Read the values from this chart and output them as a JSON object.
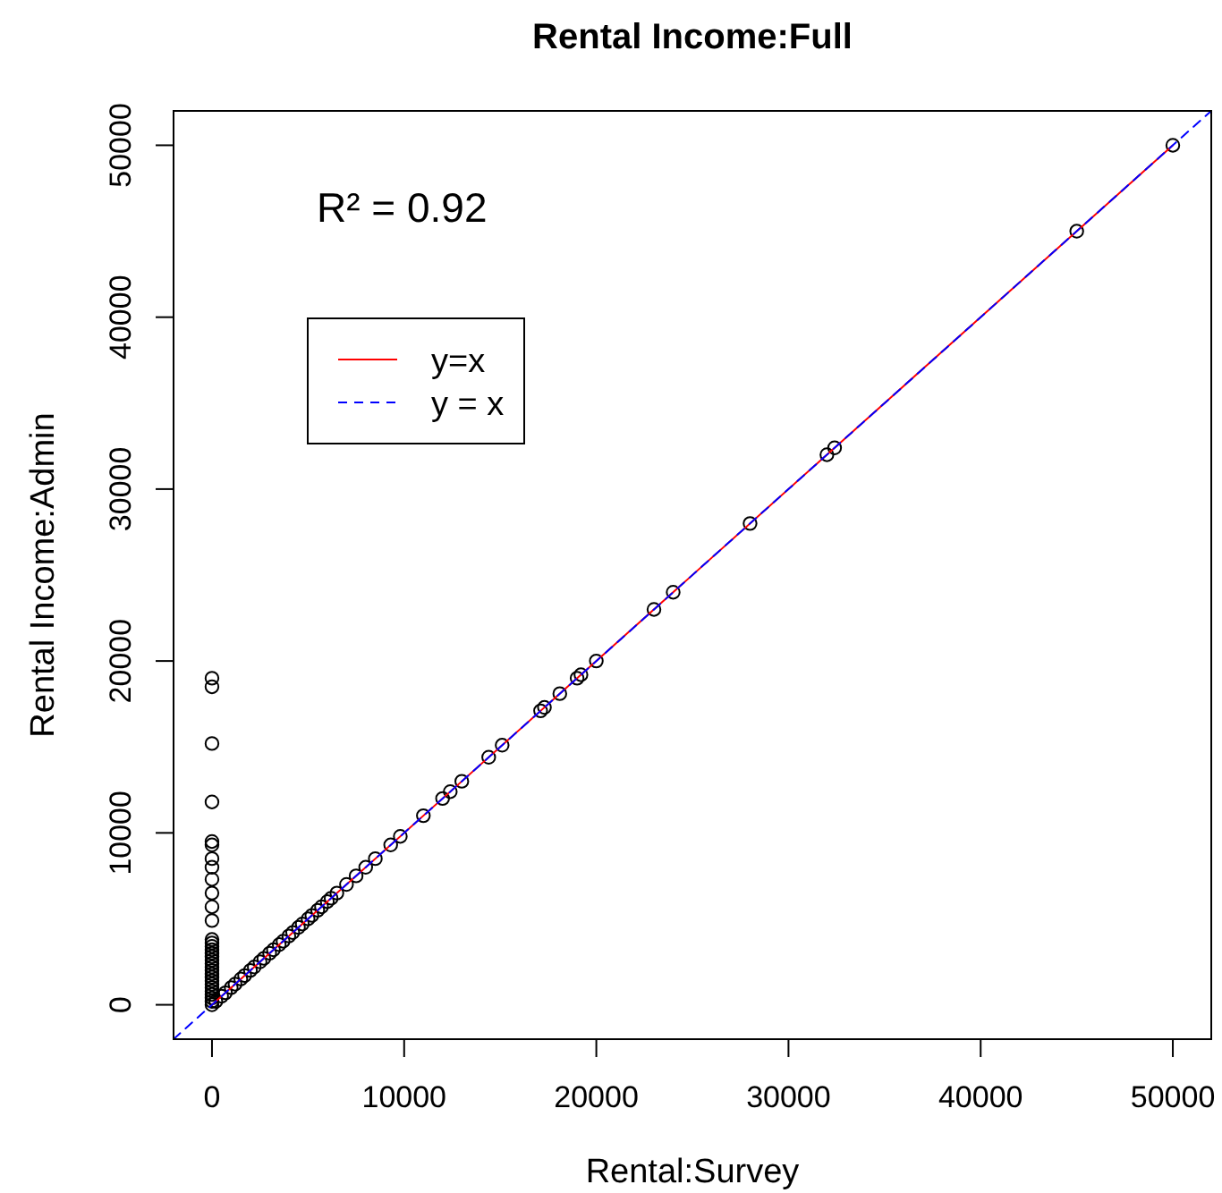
{
  "chart_data": {
    "type": "scatter",
    "title": "Rental Income:Full",
    "xlabel": "Rental:Survey",
    "ylabel": "Rental Income:Admin",
    "annotations": [
      "R² = 0.92"
    ],
    "xlim": [
      -2000,
      52000
    ],
    "ylim": [
      -2000,
      52000
    ],
    "xticks": [
      0,
      10000,
      20000,
      30000,
      40000,
      50000
    ],
    "yticks": [
      0,
      10000,
      20000,
      30000,
      40000,
      50000
    ],
    "grid": false,
    "legend": "top left",
    "marker": "circle",
    "series": [
      {
        "color": "#000000",
        "x": [
          0,
          0,
          0,
          0,
          0,
          0,
          0,
          0,
          0,
          0,
          0,
          0,
          0,
          0,
          0,
          0,
          0,
          0,
          0,
          0,
          0,
          0,
          0,
          0,
          0,
          0,
          0,
          0,
          0,
          0,
          0,
          0,
          200,
          500,
          700,
          1000,
          1200,
          1500,
          1700,
          2000,
          2200,
          2500,
          2700,
          3000,
          3200,
          3500,
          3700,
          4000,
          4200,
          4500,
          4700,
          5000,
          5200,
          5500,
          5700,
          6000,
          6200,
          6500,
          7000,
          7500,
          8000,
          8500,
          9300,
          9800,
          11000,
          12000,
          12400,
          13000,
          14400,
          15100,
          17100,
          17300,
          18100,
          19000,
          19200,
          20000,
          23000,
          24000,
          28000,
          32000,
          32400,
          45000,
          50000
        ],
        "values": [
          19000,
          18500,
          15200,
          11800,
          9500,
          9300,
          8500,
          8000,
          7300,
          6500,
          5700,
          4900,
          3800,
          3600,
          3400,
          3200,
          3000,
          2800,
          2600,
          2400,
          2200,
          2000,
          1800,
          1600,
          1400,
          1200,
          1000,
          800,
          600,
          400,
          200,
          0,
          200,
          500,
          700,
          1000,
          1200,
          1500,
          1700,
          2000,
          2200,
          2500,
          2700,
          3000,
          3200,
          3500,
          3700,
          4000,
          4200,
          4500,
          4700,
          5000,
          5200,
          5500,
          5700,
          6000,
          6200,
          6500,
          7000,
          7500,
          8000,
          8500,
          9300,
          9800,
          11000,
          12000,
          12400,
          13000,
          14400,
          15100,
          17100,
          17300,
          18100,
          19000,
          19200,
          20000,
          23000,
          24000,
          28000,
          32000,
          32400,
          45000,
          50000
        ]
      },
      {
        "type": "line",
        "name": "y=x",
        "color": "#ff0000",
        "line_style": "solid",
        "marker": "none",
        "x": [
          0,
          50000
        ],
        "values": [
          0,
          50000
        ]
      },
      {
        "type": "line",
        "name": "y = x",
        "color": "#0000ff",
        "line_style": "dashed",
        "marker": "none",
        "x": [
          -2000,
          52000
        ],
        "values": [
          -2000,
          52000
        ]
      }
    ]
  }
}
